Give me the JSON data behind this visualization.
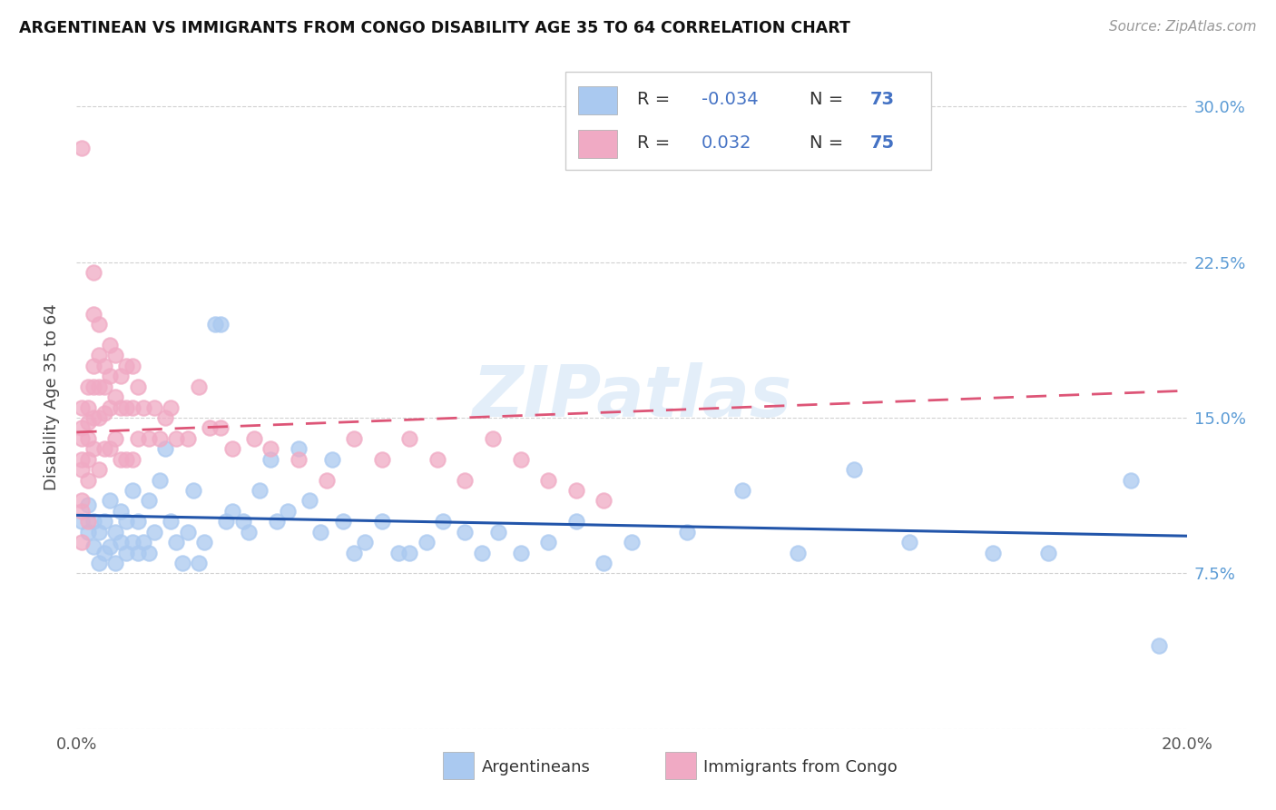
{
  "title": "ARGENTINEAN VS IMMIGRANTS FROM CONGO DISABILITY AGE 35 TO 64 CORRELATION CHART",
  "source": "Source: ZipAtlas.com",
  "ylabel_label": "Disability Age 35 to 64",
  "xlim": [
    0.0,
    0.2
  ],
  "ylim": [
    0.0,
    0.32
  ],
  "xtick_positions": [
    0.0,
    0.05,
    0.1,
    0.15,
    0.2
  ],
  "xtick_labels": [
    "0.0%",
    "",
    "",
    "",
    "20.0%"
  ],
  "ytick_positions": [
    0.0,
    0.075,
    0.15,
    0.225,
    0.3
  ],
  "ytick_labels_right": [
    "",
    "7.5%",
    "15.0%",
    "22.5%",
    "30.0%"
  ],
  "blue_R": -0.034,
  "blue_N": 73,
  "pink_R": 0.032,
  "pink_N": 75,
  "blue_color": "#aac9f0",
  "pink_color": "#f0aac4",
  "blue_line_color": "#2255aa",
  "pink_line_color": "#dd5577",
  "watermark": "ZIPatlas",
  "blue_line_x0": 0.0,
  "blue_line_y0": 0.103,
  "blue_line_x1": 0.2,
  "blue_line_y1": 0.093,
  "pink_line_x0": 0.0,
  "pink_line_y0": 0.143,
  "pink_line_x1": 0.2,
  "pink_line_y1": 0.163,
  "blue_x": [
    0.001,
    0.002,
    0.002,
    0.003,
    0.003,
    0.004,
    0.004,
    0.005,
    0.005,
    0.006,
    0.006,
    0.007,
    0.007,
    0.008,
    0.008,
    0.009,
    0.009,
    0.01,
    0.01,
    0.011,
    0.011,
    0.012,
    0.013,
    0.013,
    0.014,
    0.015,
    0.016,
    0.017,
    0.018,
    0.019,
    0.02,
    0.021,
    0.022,
    0.023,
    0.025,
    0.026,
    0.027,
    0.028,
    0.03,
    0.031,
    0.033,
    0.035,
    0.036,
    0.038,
    0.04,
    0.042,
    0.044,
    0.046,
    0.048,
    0.05,
    0.052,
    0.055,
    0.058,
    0.06,
    0.063,
    0.066,
    0.07,
    0.073,
    0.076,
    0.08,
    0.085,
    0.09,
    0.095,
    0.1,
    0.11,
    0.12,
    0.13,
    0.14,
    0.15,
    0.165,
    0.175,
    0.19,
    0.195
  ],
  "blue_y": [
    0.1,
    0.108,
    0.095,
    0.1,
    0.088,
    0.095,
    0.08,
    0.1,
    0.085,
    0.11,
    0.088,
    0.095,
    0.08,
    0.105,
    0.09,
    0.1,
    0.085,
    0.115,
    0.09,
    0.085,
    0.1,
    0.09,
    0.11,
    0.085,
    0.095,
    0.12,
    0.135,
    0.1,
    0.09,
    0.08,
    0.095,
    0.115,
    0.08,
    0.09,
    0.195,
    0.195,
    0.1,
    0.105,
    0.1,
    0.095,
    0.115,
    0.13,
    0.1,
    0.105,
    0.135,
    0.11,
    0.095,
    0.13,
    0.1,
    0.085,
    0.09,
    0.1,
    0.085,
    0.085,
    0.09,
    0.1,
    0.095,
    0.085,
    0.095,
    0.085,
    0.09,
    0.1,
    0.08,
    0.09,
    0.095,
    0.115,
    0.085,
    0.125,
    0.09,
    0.085,
    0.085,
    0.12,
    0.04
  ],
  "pink_x": [
    0.001,
    0.001,
    0.001,
    0.001,
    0.001,
    0.001,
    0.001,
    0.001,
    0.001,
    0.002,
    0.002,
    0.002,
    0.002,
    0.002,
    0.002,
    0.002,
    0.003,
    0.003,
    0.003,
    0.003,
    0.003,
    0.003,
    0.004,
    0.004,
    0.004,
    0.004,
    0.004,
    0.005,
    0.005,
    0.005,
    0.005,
    0.006,
    0.006,
    0.006,
    0.006,
    0.007,
    0.007,
    0.007,
    0.008,
    0.008,
    0.008,
    0.009,
    0.009,
    0.009,
    0.01,
    0.01,
    0.01,
    0.011,
    0.011,
    0.012,
    0.013,
    0.014,
    0.015,
    0.016,
    0.017,
    0.018,
    0.02,
    0.022,
    0.024,
    0.026,
    0.028,
    0.032,
    0.035,
    0.04,
    0.045,
    0.05,
    0.055,
    0.06,
    0.065,
    0.07,
    0.075,
    0.08,
    0.085,
    0.09,
    0.095
  ],
  "pink_y": [
    0.28,
    0.155,
    0.145,
    0.14,
    0.13,
    0.125,
    0.11,
    0.105,
    0.09,
    0.165,
    0.155,
    0.148,
    0.14,
    0.13,
    0.12,
    0.1,
    0.22,
    0.2,
    0.175,
    0.165,
    0.15,
    0.135,
    0.195,
    0.18,
    0.165,
    0.15,
    0.125,
    0.175,
    0.165,
    0.152,
    0.135,
    0.185,
    0.17,
    0.155,
    0.135,
    0.18,
    0.16,
    0.14,
    0.17,
    0.155,
    0.13,
    0.175,
    0.155,
    0.13,
    0.175,
    0.155,
    0.13,
    0.165,
    0.14,
    0.155,
    0.14,
    0.155,
    0.14,
    0.15,
    0.155,
    0.14,
    0.14,
    0.165,
    0.145,
    0.145,
    0.135,
    0.14,
    0.135,
    0.13,
    0.12,
    0.14,
    0.13,
    0.14,
    0.13,
    0.12,
    0.14,
    0.13,
    0.12,
    0.115,
    0.11
  ]
}
